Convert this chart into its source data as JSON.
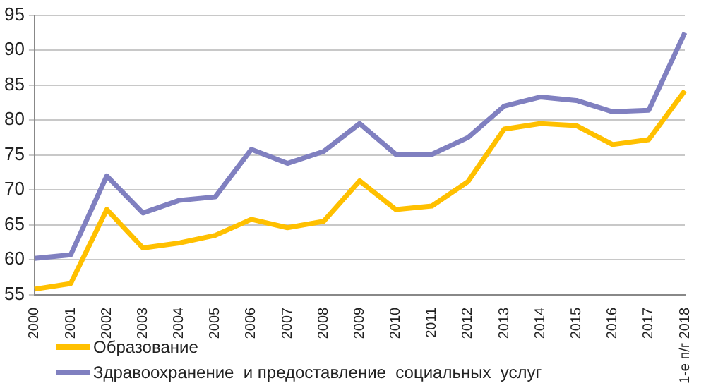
{
  "chart_data": {
    "type": "line",
    "categories": [
      "2000",
      "2001",
      "2002",
      "2003",
      "2004",
      "2005",
      "2006",
      "2007",
      "2008",
      "2009",
      "2010",
      "2011",
      "2012",
      "2013",
      "2014",
      "2015",
      "2016",
      "2017",
      "1-е п/г 2018"
    ],
    "series": [
      {
        "name": "Образование",
        "color": "#ffc000",
        "values": [
          55.8,
          56.6,
          67.2,
          61.7,
          62.4,
          63.5,
          65.8,
          64.6,
          65.5,
          71.3,
          67.2,
          67.7,
          71.2,
          78.7,
          79.5,
          79.2,
          76.5,
          77.2,
          84.2
        ]
      },
      {
        "name": "Здравоохранение  и предоставление  социальных  услуг",
        "color": "#8080c0",
        "values": [
          60.2,
          60.7,
          72,
          66.7,
          68.5,
          69,
          75.8,
          73.8,
          75.5,
          79.5,
          75.1,
          75.1,
          77.5,
          82,
          83.3,
          82.8,
          81.2,
          81.4,
          92.5
        ]
      }
    ],
    "ylim": [
      55,
      95
    ],
    "yticks": [
      55,
      60,
      65,
      70,
      75,
      80,
      85,
      90,
      95
    ],
    "grid": "y",
    "legend": "bottom left",
    "marker": "none"
  }
}
